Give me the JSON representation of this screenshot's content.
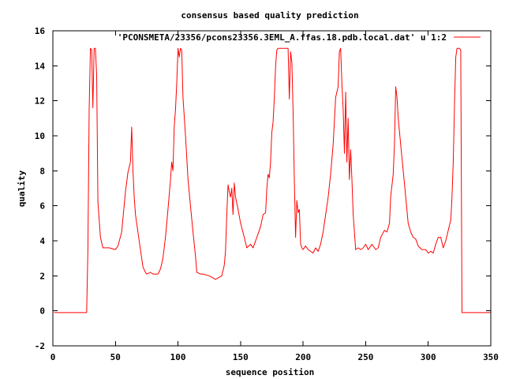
{
  "chart_data": {
    "type": "line",
    "title": "consensus based quality prediction",
    "xlabel": "sequence position",
    "ylabel": "quality",
    "xlim": [
      0,
      350
    ],
    "ylim": [
      -2,
      16
    ],
    "xticks": [
      0,
      50,
      100,
      150,
      200,
      250,
      300,
      350
    ],
    "yticks": [
      -2,
      0,
      2,
      4,
      6,
      8,
      10,
      12,
      14,
      16
    ],
    "grid": false,
    "legend_position": "top-right",
    "series": [
      {
        "name": "'PCONSMETA/23356/pcons23356.3EML_A.ffas.18.pdb.local.dat' u 1:2",
        "color": "#ff0000",
        "x": [
          1,
          27,
          28,
          29,
          30,
          31,
          32,
          33,
          34,
          35,
          36,
          38,
          40,
          45,
          50,
          52,
          55,
          58,
          60,
          62,
          63,
          64,
          65,
          66,
          68,
          70,
          72,
          74,
          75,
          78,
          80,
          84,
          86,
          88,
          90,
          92,
          94,
          95,
          96,
          97,
          98,
          99,
          100,
          101,
          102,
          103,
          104,
          106,
          108,
          110,
          112,
          114,
          115,
          118,
          120,
          125,
          130,
          135,
          137,
          138,
          139,
          140,
          141,
          142,
          143,
          144,
          145,
          146,
          148,
          150,
          153,
          155,
          158,
          160,
          163,
          166,
          168,
          170,
          171,
          172,
          173,
          174,
          175,
          176,
          177,
          178,
          179,
          180,
          188,
          189,
          190,
          191,
          192,
          193,
          194,
          195,
          196,
          197,
          198,
          199,
          200,
          202,
          204,
          206,
          208,
          210,
          212,
          214,
          216,
          218,
          220,
          222,
          224,
          226,
          228,
          229,
          230,
          231,
          232,
          233,
          234,
          235,
          236,
          237,
          238,
          239,
          240,
          241,
          242,
          244,
          246,
          248,
          250,
          252,
          255,
          258,
          260,
          262,
          265,
          267,
          269,
          270,
          272,
          273,
          274,
          275,
          276,
          278,
          280,
          282,
          284,
          286,
          288,
          290,
          292,
          295,
          298,
          300,
          302,
          304,
          306,
          308,
          310,
          312,
          314,
          316,
          318,
          319,
          320,
          321,
          322,
          323,
          324,
          325,
          326,
          327,
          330,
          335,
          350
        ],
        "y": [
          -0.1,
          -0.1,
          3.5,
          11.5,
          15,
          14.9,
          11.6,
          15,
          15,
          13.5,
          6.2,
          4.2,
          3.6,
          3.6,
          3.5,
          3.7,
          4.5,
          6.8,
          7.9,
          8.5,
          10.5,
          8,
          6.5,
          5.5,
          4.5,
          3.5,
          2.5,
          2.2,
          2.1,
          2.2,
          2.1,
          2.1,
          2.4,
          3,
          4.2,
          5.8,
          7.5,
          8.5,
          8,
          10.5,
          11.5,
          13,
          15,
          14.5,
          15,
          14.9,
          12.2,
          10,
          7.5,
          6,
          4.5,
          3.1,
          2.2,
          2.1,
          2.1,
          2,
          1.8,
          2,
          2.6,
          3.4,
          5.5,
          7.2,
          6.8,
          6.5,
          7,
          5.5,
          7.3,
          6.5,
          5.8,
          5,
          4.2,
          3.6,
          3.8,
          3.6,
          4.2,
          4.8,
          5.5,
          5.6,
          7,
          7.8,
          7.6,
          8.5,
          10.2,
          10.8,
          12.2,
          14,
          14.9,
          15,
          15,
          12.1,
          14.8,
          14.2,
          11.3,
          7.5,
          4.2,
          6.3,
          5.6,
          5.8,
          3.8,
          3.6,
          3.5,
          3.7,
          3.5,
          3.4,
          3.3,
          3.6,
          3.4,
          3.8,
          4.5,
          5.5,
          6.5,
          7.8,
          9.5,
          12.2,
          12.8,
          14.8,
          15,
          13,
          11.5,
          9,
          12.5,
          8.5,
          11,
          7.5,
          9.2,
          7.5,
          5.5,
          4.5,
          3.5,
          3.6,
          3.5,
          3.6,
          3.8,
          3.5,
          3.8,
          3.5,
          3.6,
          4.2,
          4.6,
          4.5,
          5,
          6.5,
          7.8,
          9.5,
          12.8,
          12.2,
          11,
          9.5,
          8,
          6.5,
          5,
          4.5,
          4.2,
          4.1,
          3.7,
          3.5,
          3.5,
          3.3,
          3.4,
          3.3,
          3.8,
          4.2,
          4.2,
          3.6,
          4,
          4.6,
          5.2,
          6.5,
          8.5,
          11.8,
          14.5,
          15,
          15,
          15,
          14.9,
          -0.1,
          -0.1,
          -0.1,
          -0.1
        ]
      }
    ]
  }
}
